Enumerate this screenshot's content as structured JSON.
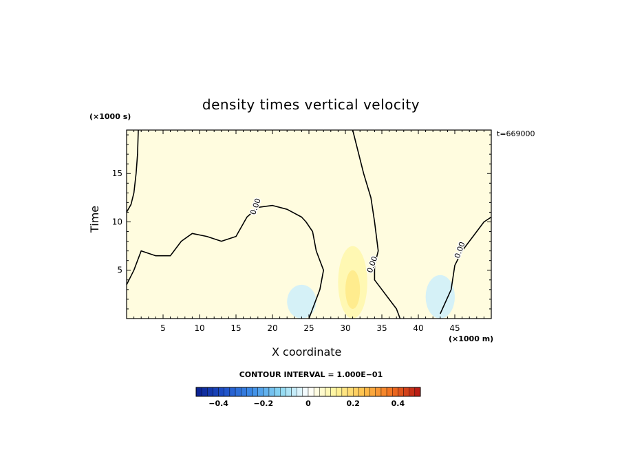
{
  "chart_data": {
    "type": "heatmap",
    "title": "density times vertical velocity",
    "xlabel": "X coordinate",
    "ylabel": "Time",
    "x_units_label": "(×1000 m)",
    "y_units_label": "(×1000 s)",
    "time_stamp": "t=669000",
    "contour_interval_label": "CONTOUR INTERVAL = 1.000E−01",
    "xlim": [
      0,
      50
    ],
    "ylim": [
      0,
      19.5
    ],
    "x_ticks": [
      5,
      10,
      15,
      20,
      25,
      30,
      35,
      40,
      45
    ],
    "y_ticks": [
      5,
      10,
      15
    ],
    "contour_label": "0.00",
    "zero_contours": [
      {
        "x": [
          0.0,
          0.6,
          1.0,
          1.3,
          1.5,
          1.6
        ],
        "y": [
          11.0,
          11.8,
          13.0,
          15.0,
          17.0,
          19.5
        ]
      },
      {
        "x": [
          0.0,
          1.0,
          2.0,
          4.0,
          6.0,
          7.5,
          9.0,
          11.0,
          13.0,
          15.0,
          16.5,
          18.0,
          20.0,
          22.0,
          24.0,
          24.6,
          25.5,
          26.0,
          27.0,
          26.5,
          25.5,
          25.0
        ],
        "y": [
          3.5,
          5.0,
          7.0,
          6.5,
          6.5,
          8.0,
          8.8,
          8.5,
          8.0,
          8.5,
          10.5,
          11.5,
          11.7,
          11.3,
          10.5,
          10.0,
          9.0,
          7.0,
          5.0,
          3.0,
          1.0,
          0.0
        ]
      },
      {
        "x": [
          31.0,
          32.5,
          33.5,
          34.0,
          34.5,
          34.0,
          34.0,
          35.0,
          36.0,
          37.0,
          37.5
        ],
        "y": [
          19.5,
          15.0,
          12.5,
          10.0,
          7.0,
          5.5,
          4.0,
          3.0,
          2.0,
          1.0,
          0.0
        ]
      },
      {
        "x": [
          50.0,
          49.0,
          47.5,
          46.0,
          45.0,
          44.5,
          43.0
        ],
        "y": [
          10.5,
          10.0,
          8.5,
          7.0,
          5.5,
          3.0,
          0.5
        ]
      }
    ],
    "shaded_regions": [
      {
        "level": 0.04,
        "x_range": [
          0,
          50
        ],
        "y_range": [
          0,
          19.5
        ]
      },
      {
        "level": 0.1,
        "x_range": [
          29,
          33
        ],
        "y_range": [
          0,
          7.5
        ]
      },
      {
        "level": 0.15,
        "x_range": [
          30,
          32
        ],
        "y_range": [
          1,
          5
        ]
      },
      {
        "level": -0.05,
        "x_range": [
          22,
          26
        ],
        "y_range": [
          0,
          3.5
        ]
      },
      {
        "level": -0.05,
        "x_range": [
          41,
          45
        ],
        "y_range": [
          0,
          4.5
        ]
      }
    ],
    "colorbar": {
      "levels": [
        -0.5,
        0.5
      ],
      "step": 0.025,
      "tick_values": [
        -0.4,
        -0.2,
        0,
        0.2,
        0.4
      ],
      "tick_labels": [
        "−0.4",
        "−0.2",
        "0",
        "0.2",
        "0.4"
      ],
      "colors": [
        "#0a1f8f",
        "#1e50c8",
        "#3c8ce8",
        "#8ad8f2",
        "#ffffff",
        "#fff59a",
        "#ffc04a",
        "#f06e1e",
        "#b41414"
      ]
    },
    "grid": false,
    "legend": "colorbar-bottom"
  }
}
